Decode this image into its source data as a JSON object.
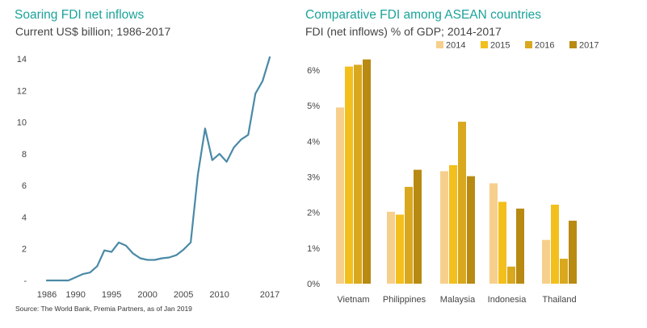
{
  "left_panel": {
    "title": "Soaring FDI net inflows",
    "subtitle": "Current US$ billion; 1986-2017"
  },
  "right_panel": {
    "title": "Comparative FDI among ASEAN countries",
    "subtitle": "FDI (net inflows) % of GDP; 2014-2017"
  },
  "source": "Source: The World Bank, Premia Partners, as of Jan 2019",
  "chart_data": [
    {
      "type": "line",
      "title": "Soaring FDI net inflows",
      "subtitle": "Current US$ billion; 1986-2017",
      "xlabel": "",
      "ylabel": "",
      "xlim": [
        1986,
        2017
      ],
      "ylim": [
        0,
        14
      ],
      "x_ticks": [
        1986,
        1990,
        1995,
        2000,
        2005,
        2010,
        2017
      ],
      "y_ticks": [
        0,
        2,
        4,
        6,
        8,
        10,
        12,
        14
      ],
      "y_tick_labels": [
        "-",
        "2",
        "4",
        "6",
        "8",
        "10",
        "12",
        "14"
      ],
      "grid": false,
      "color": "#4a8aa6",
      "series": [
        {
          "x": [
            1986,
            1987,
            1988,
            1989,
            1990,
            1991,
            1992,
            1993,
            1994,
            1995,
            1996,
            1997,
            1998,
            1999,
            2000,
            2001,
            2002,
            2003,
            2004,
            2005,
            2006,
            2007,
            2008,
            2009,
            2010,
            2011,
            2012,
            2013,
            2014,
            2015,
            2016,
            2017
          ],
          "values": [
            0.0,
            0.0,
            0.0,
            0.0,
            0.2,
            0.4,
            0.5,
            0.9,
            1.9,
            1.8,
            2.4,
            2.2,
            1.7,
            1.4,
            1.3,
            1.3,
            1.4,
            1.45,
            1.6,
            1.95,
            2.4,
            6.7,
            9.6,
            7.6,
            8.0,
            7.5,
            8.4,
            8.9,
            9.2,
            11.8,
            12.6,
            14.1
          ]
        }
      ]
    },
    {
      "type": "bar",
      "title": "Comparative FDI among ASEAN countries",
      "subtitle": "FDI (net inflows) % of GDP; 2014-2017",
      "xlabel": "",
      "ylabel": "",
      "categories": [
        "Vietnam",
        "Philippines",
        "Malaysia",
        "Indonesia",
        "Thailand"
      ],
      "ylim": [
        0,
        6
      ],
      "y_ticks": [
        0,
        1,
        2,
        3,
        4,
        5,
        6
      ],
      "y_tick_labels": [
        "0%",
        "1%",
        "2%",
        "3%",
        "4%",
        "5%",
        "6%"
      ],
      "grid": false,
      "legend_position": "top-right",
      "series": [
        {
          "name": "2014",
          "color": "#f7cf8c",
          "values": [
            4.95,
            2.02,
            3.16,
            2.82,
            1.23
          ]
        },
        {
          "name": "2015",
          "color": "#f3bf1c",
          "values": [
            6.1,
            1.94,
            3.33,
            2.3,
            2.22
          ]
        },
        {
          "name": "2016",
          "color": "#d9a81e",
          "values": [
            6.15,
            2.72,
            4.55,
            0.48,
            0.7
          ]
        },
        {
          "name": "2017",
          "color": "#b88a12",
          "values": [
            6.3,
            3.2,
            3.02,
            2.11,
            1.77
          ]
        }
      ]
    }
  ]
}
